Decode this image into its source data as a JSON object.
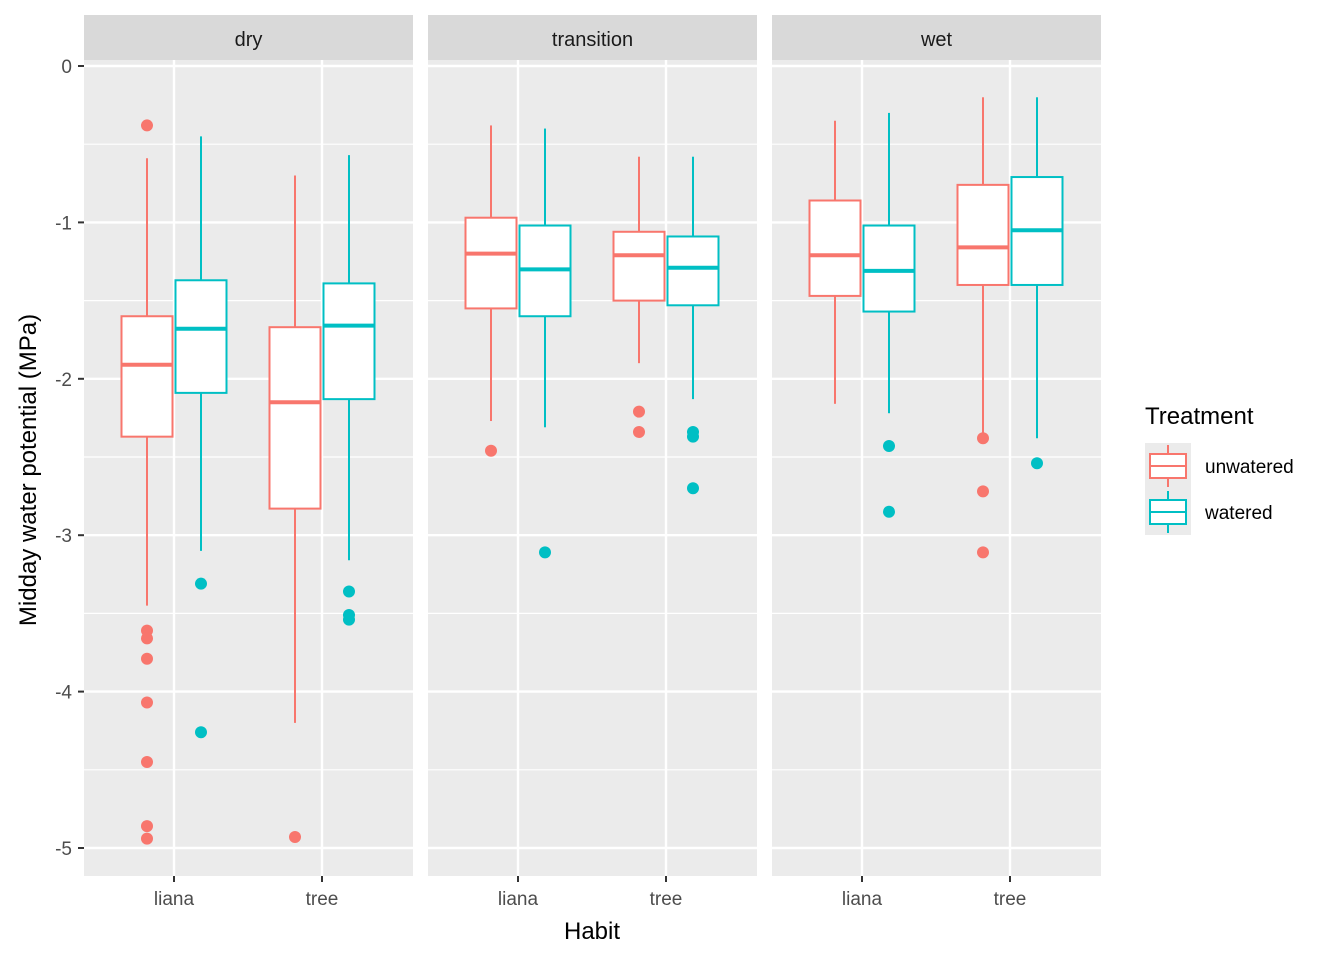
{
  "chart_data": {
    "type": "boxplot",
    "title": "",
    "xlabel": "Habit",
    "ylabel": "Midday water potential (MPa)",
    "ylim": [
      -5.17,
      0.3
    ],
    "yticks": [
      0,
      -1,
      -2,
      -3,
      -4,
      -5
    ],
    "ytick_labels": [
      "0",
      "-1",
      "-2",
      "-3",
      "-4",
      "-5"
    ],
    "categories": [
      "liana",
      "tree"
    ],
    "grid": true,
    "legend": {
      "title": "Treatment",
      "position": "right",
      "entries": [
        {
          "name": "unwatered",
          "color": "#F8766D"
        },
        {
          "name": "watered",
          "color": "#00BFC4"
        }
      ]
    },
    "facets": [
      {
        "label": "dry",
        "groups": [
          {
            "habit": "liana",
            "treatment": "unwatered",
            "whisker_high": -0.59,
            "q3": -1.6,
            "median": -1.91,
            "q1": -2.37,
            "whisker_low": -3.45,
            "outliers": [
              -0.38,
              -3.61,
              -3.66,
              -3.79,
              -4.07,
              -4.45,
              -4.86,
              -4.94
            ]
          },
          {
            "habit": "liana",
            "treatment": "watered",
            "whisker_high": -0.45,
            "q3": -1.37,
            "median": -1.68,
            "q1": -2.09,
            "whisker_low": -3.1,
            "outliers": [
              -3.31,
              -4.26
            ]
          },
          {
            "habit": "tree",
            "treatment": "unwatered",
            "whisker_high": -0.7,
            "q3": -1.67,
            "median": -2.15,
            "q1": -2.83,
            "whisker_low": -4.2,
            "outliers": [
              -4.93
            ]
          },
          {
            "habit": "tree",
            "treatment": "watered",
            "whisker_high": -0.57,
            "q3": -1.39,
            "median": -1.66,
            "q1": -2.13,
            "whisker_low": -3.16,
            "outliers": [
              -3.36,
              -3.51,
              -3.54
            ]
          }
        ]
      },
      {
        "label": "transition",
        "groups": [
          {
            "habit": "liana",
            "treatment": "unwatered",
            "whisker_high": -0.38,
            "q3": -0.97,
            "median": -1.2,
            "q1": -1.55,
            "whisker_low": -2.27,
            "outliers": [
              -2.46
            ]
          },
          {
            "habit": "liana",
            "treatment": "watered",
            "whisker_high": -0.4,
            "q3": -1.02,
            "median": -1.3,
            "q1": -1.6,
            "whisker_low": -2.31,
            "outliers": [
              -3.11
            ]
          },
          {
            "habit": "tree",
            "treatment": "unwatered",
            "whisker_high": -0.58,
            "q3": -1.06,
            "median": -1.21,
            "q1": -1.5,
            "whisker_low": -1.9,
            "outliers": [
              -2.21,
              -2.34
            ]
          },
          {
            "habit": "tree",
            "treatment": "watered",
            "whisker_high": -0.58,
            "q3": -1.09,
            "median": -1.29,
            "q1": -1.53,
            "whisker_low": -2.13,
            "outliers": [
              -2.34,
              -2.37,
              -2.7
            ]
          }
        ]
      },
      {
        "label": "wet",
        "groups": [
          {
            "habit": "liana",
            "treatment": "unwatered",
            "whisker_high": -0.35,
            "q3": -0.86,
            "median": -1.21,
            "q1": -1.47,
            "whisker_low": -2.16,
            "outliers": []
          },
          {
            "habit": "liana",
            "treatment": "watered",
            "whisker_high": -0.3,
            "q3": -1.02,
            "median": -1.31,
            "q1": -1.57,
            "whisker_low": -2.22,
            "outliers": [
              -2.43,
              -2.85
            ]
          },
          {
            "habit": "tree",
            "treatment": "unwatered",
            "whisker_high": -0.2,
            "q3": -0.76,
            "median": -1.16,
            "q1": -1.4,
            "whisker_low": -2.38,
            "outliers": [
              -2.38,
              -2.72,
              -3.11
            ]
          },
          {
            "habit": "tree",
            "treatment": "watered",
            "whisker_high": -0.2,
            "q3": -0.71,
            "median": -1.05,
            "q1": -1.4,
            "whisker_low": -2.38,
            "outliers": [
              -2.54
            ]
          }
        ]
      }
    ]
  },
  "colors": {
    "unwatered": "#F8766D",
    "watered": "#00BFC4",
    "panel_bg": "#EBEBEB",
    "strip_bg": "#D9D9D9"
  }
}
